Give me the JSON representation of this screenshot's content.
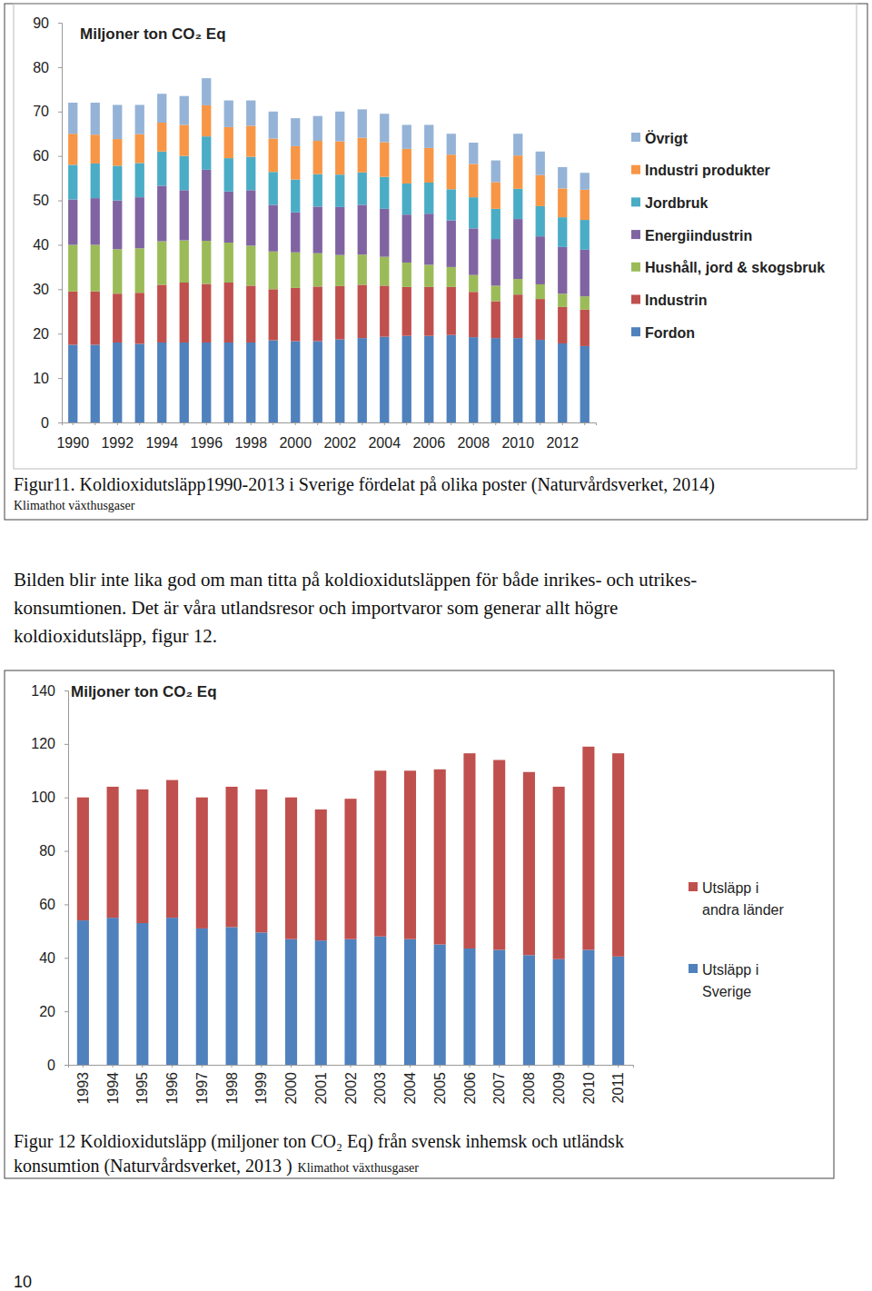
{
  "chart_data": [
    {
      "type": "bar",
      "stacked": true,
      "title": "Miljoner ton CO₂ Eq",
      "categories": [
        "1990",
        null,
        "1992",
        null,
        "1994",
        null,
        "1996",
        null,
        "1998",
        null,
        "2000",
        null,
        "2002",
        null,
        "2004",
        null,
        "2006",
        null,
        "2008",
        null,
        "2010",
        null,
        "2012",
        null
      ],
      "ylim": [
        0,
        90
      ],
      "yticks": [
        0,
        10,
        20,
        30,
        40,
        50,
        60,
        70,
        80,
        90
      ],
      "grid": false,
      "legend": "right",
      "series": [
        {
          "name": "Fordon",
          "color": "#4f81bd",
          "values": [
            17.5,
            17.5,
            18,
            17.7,
            18,
            18,
            18,
            18,
            18,
            18.5,
            18.3,
            18.3,
            18.7,
            19,
            19.3,
            19.5,
            19.5,
            19.7,
            19.2,
            19,
            19,
            18.6,
            17.8,
            17.2
          ]
        },
        {
          "name": "Industrin",
          "color": "#c0504d",
          "values": [
            12,
            12,
            11,
            11.5,
            13,
            13.5,
            13.2,
            13.5,
            12.8,
            11.5,
            12,
            12.3,
            12,
            12,
            11.5,
            11,
            11,
            10.8,
            10.2,
            8.3,
            9.8,
            9.2,
            8.2,
            8.2
          ]
        },
        {
          "name": "Hushåll, jord & skogsbruk",
          "color": "#9bbb59",
          "values": [
            10.5,
            10.5,
            10,
            10,
            9.8,
            9.5,
            9.7,
            9,
            9,
            8.5,
            8,
            7.5,
            7,
            6.8,
            6.5,
            5.5,
            5,
            4.5,
            3.8,
            3.5,
            3.5,
            3.3,
            3,
            3
          ]
        },
        {
          "name": "Energiindustrin",
          "color": "#8064a2",
          "values": [
            10.2,
            10.5,
            11,
            11.5,
            12.5,
            11.3,
            16,
            11.5,
            12.5,
            10.5,
            9,
            10.5,
            10.8,
            11.2,
            10.8,
            10.8,
            11.5,
            10.5,
            10.5,
            10.5,
            13.5,
            10.8,
            10.5,
            10.5
          ]
        },
        {
          "name": "Jordbruk",
          "color": "#4bacc6",
          "values": [
            7.8,
            7.8,
            7.8,
            7.7,
            7.7,
            7.7,
            7.5,
            7.5,
            7.5,
            7.4,
            7.4,
            7.3,
            7.3,
            7.3,
            7.2,
            7,
            7,
            7,
            7,
            6.8,
            6.8,
            6.8,
            6.7,
            6.7
          ]
        },
        {
          "name": "Industri produkter",
          "color": "#f79646",
          "values": [
            7,
            6.5,
            6,
            6.5,
            6.5,
            7,
            7,
            7,
            7,
            7.5,
            7.5,
            7.5,
            7.5,
            7.8,
            7.8,
            7.8,
            7.8,
            7.8,
            7.5,
            6,
            7.5,
            7,
            6.5,
            6.8
          ]
        },
        {
          "name": "Övrigt",
          "color": "#95b3d7",
          "values": [
            7,
            7.2,
            7.7,
            6.6,
            6.5,
            6.5,
            6.1,
            6,
            5.7,
            6.1,
            6.3,
            5.6,
            6.7,
            6.4,
            6.4,
            5.4,
            5.2,
            4.7,
            4.8,
            4.9,
            4.9,
            5.3,
            4.8,
            3.8
          ]
        }
      ]
    },
    {
      "type": "bar",
      "stacked": true,
      "title": "Miljoner ton CO₂ Eq",
      "categories": [
        "1993",
        "1994",
        "1995",
        "1996",
        "1997",
        "1998",
        "1999",
        "2000",
        "2001",
        "2002",
        "2003",
        "2004",
        "2005",
        "2006",
        "2007",
        "2008",
        "2009",
        "2010",
        "2011"
      ],
      "ylim": [
        0,
        140
      ],
      "yticks": [
        0,
        20,
        40,
        60,
        80,
        100,
        120,
        140
      ],
      "grid": false,
      "legend": "right",
      "series": [
        {
          "name": "Utsläpp i Sverige",
          "color": "#4f81bd",
          "values": [
            54,
            55,
            53,
            55,
            51,
            51.5,
            49.5,
            47,
            46.5,
            47,
            48,
            47,
            45,
            43.5,
            43,
            41,
            39.5,
            43,
            40.5
          ]
        },
        {
          "name": "Utsläpp i andra länder",
          "color": "#c0504d",
          "values": [
            46,
            49,
            50,
            51.5,
            49,
            52.5,
            53.5,
            53,
            49,
            52.5,
            62,
            63,
            65.5,
            73,
            71,
            68.5,
            64.5,
            76,
            76
          ]
        }
      ]
    }
  ],
  "page": {
    "figure_captions": [
      {
        "lines": [
          "Figur11. Koldioxidutsläpp1990-2013 i Sverige fördelat på olika poster (Naturvårdsverket, 2014)"
        ],
        "source": "Klimathot växthusgaser"
      },
      {
        "lines": [
          "Figur 12 Koldioxidutsläpp (miljoner ton CO₂ Eq) från svensk inhemsk och utländsk",
          "konsumtion (Naturvårdsverket, 2013 )"
        ],
        "source": "Klimathot växthusgaser"
      }
    ],
    "paragraph": [
      "Bilden blir inte lika god om man titta på koldioxidutsläppen för både inrikes- och utrikes-",
      "konsumtionen. Det är våra utlandsresor och importvaror som generar allt högre",
      "koldioxidutsläpp, figur 12."
    ],
    "page_number": "10"
  }
}
